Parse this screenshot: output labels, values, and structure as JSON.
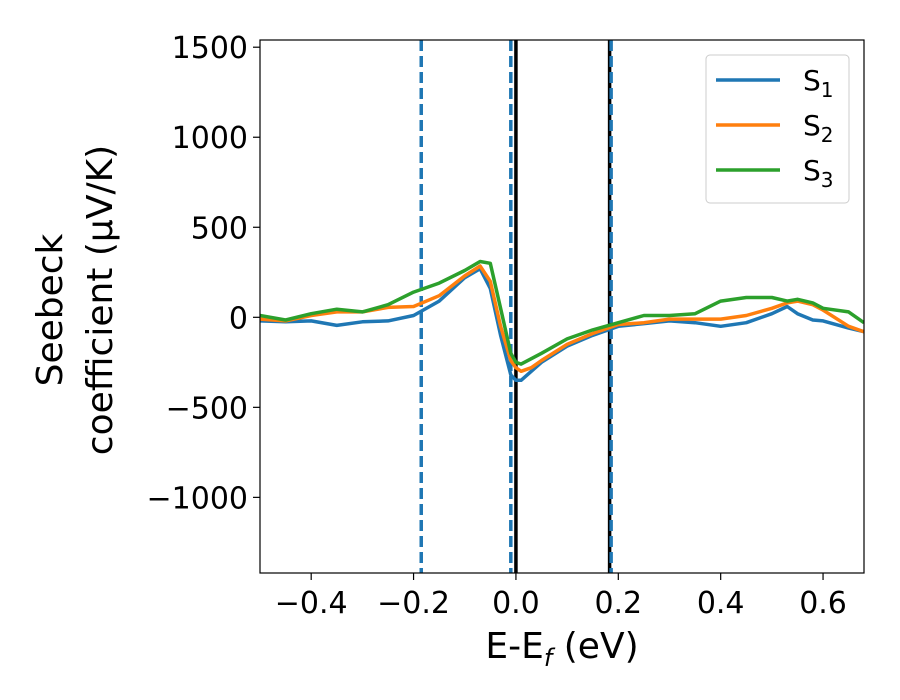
{
  "chart_data": {
    "type": "line",
    "xlabel": "E-E",
    "xlabel_sub": "f",
    "xlabel_unit": " (eV)",
    "ylabel_line1": "Seebeck",
    "ylabel_line2": "coefficient  (μV/K)",
    "xlim": [
      -0.5,
      0.68
    ],
    "ylim": [
      -1420,
      1540
    ],
    "xticks": [
      -0.4,
      -0.2,
      0.0,
      0.2,
      0.4,
      0.6
    ],
    "xtick_labels": [
      "−0.4",
      "−0.2",
      "0.0",
      "0.2",
      "0.4",
      "0.6"
    ],
    "yticks": [
      -1000,
      -500,
      0,
      500,
      1000,
      1500
    ],
    "ytick_labels": [
      "−1000",
      "−500",
      "0",
      "500",
      "1000",
      "1500"
    ],
    "grid": false,
    "legend_position": "top-right",
    "series": [
      {
        "name": "S",
        "subscript": "1",
        "color": "#1f77b4",
        "x": [
          -0.5,
          -0.45,
          -0.4,
          -0.35,
          -0.3,
          -0.25,
          -0.2,
          -0.15,
          -0.1,
          -0.07,
          -0.05,
          -0.03,
          -0.01,
          0.0,
          0.01,
          0.03,
          0.05,
          0.1,
          0.15,
          0.2,
          0.25,
          0.3,
          0.35,
          0.4,
          0.45,
          0.5,
          0.53,
          0.55,
          0.58,
          0.6,
          0.65,
          0.68
        ],
        "y": [
          -20,
          -25,
          -20,
          -45,
          -25,
          -20,
          10,
          90,
          220,
          270,
          160,
          -100,
          -320,
          -350,
          -350,
          -300,
          -250,
          -160,
          -100,
          -50,
          -35,
          -20,
          -30,
          -50,
          -30,
          20,
          60,
          20,
          -15,
          -20,
          -60,
          -80
        ]
      },
      {
        "name": "S",
        "subscript": "2",
        "color": "#ff7f0e",
        "x": [
          -0.5,
          -0.45,
          -0.4,
          -0.35,
          -0.3,
          -0.25,
          -0.2,
          -0.15,
          -0.1,
          -0.07,
          -0.05,
          -0.03,
          -0.01,
          0.0,
          0.01,
          0.03,
          0.05,
          0.1,
          0.15,
          0.2,
          0.25,
          0.3,
          0.35,
          0.4,
          0.45,
          0.5,
          0.53,
          0.55,
          0.58,
          0.6,
          0.65,
          0.68
        ],
        "y": [
          -10,
          -20,
          10,
          30,
          30,
          55,
          60,
          120,
          230,
          285,
          200,
          -50,
          -240,
          -280,
          -300,
          -280,
          -240,
          -150,
          -90,
          -40,
          -30,
          -10,
          -10,
          -10,
          10,
          50,
          80,
          90,
          70,
          40,
          -50,
          -80
        ]
      },
      {
        "name": "S",
        "subscript": "3",
        "color": "#2ca02c",
        "x": [
          -0.5,
          -0.45,
          -0.4,
          -0.35,
          -0.3,
          -0.25,
          -0.2,
          -0.15,
          -0.1,
          -0.07,
          -0.05,
          -0.03,
          -0.01,
          0.0,
          0.01,
          0.03,
          0.05,
          0.1,
          0.15,
          0.2,
          0.25,
          0.3,
          0.35,
          0.4,
          0.45,
          0.5,
          0.53,
          0.55,
          0.58,
          0.6,
          0.65,
          0.68
        ],
        "y": [
          10,
          -15,
          20,
          45,
          30,
          70,
          140,
          190,
          260,
          310,
          300,
          50,
          -200,
          -250,
          -260,
          -230,
          -200,
          -120,
          -70,
          -30,
          10,
          10,
          20,
          90,
          110,
          110,
          90,
          100,
          80,
          50,
          30,
          -30
        ]
      }
    ],
    "vlines": [
      {
        "x": -0.185,
        "style": "dashed",
        "color": "#1f77b4"
      },
      {
        "x": -0.01,
        "style": "dashed",
        "color": "#1f77b4"
      },
      {
        "x": 0.0,
        "style": "solid",
        "color": "#000000"
      },
      {
        "x": 0.183,
        "style": "solid",
        "color": "#000000"
      },
      {
        "x": 0.186,
        "style": "dashed",
        "color": "#1f77b4"
      }
    ]
  }
}
